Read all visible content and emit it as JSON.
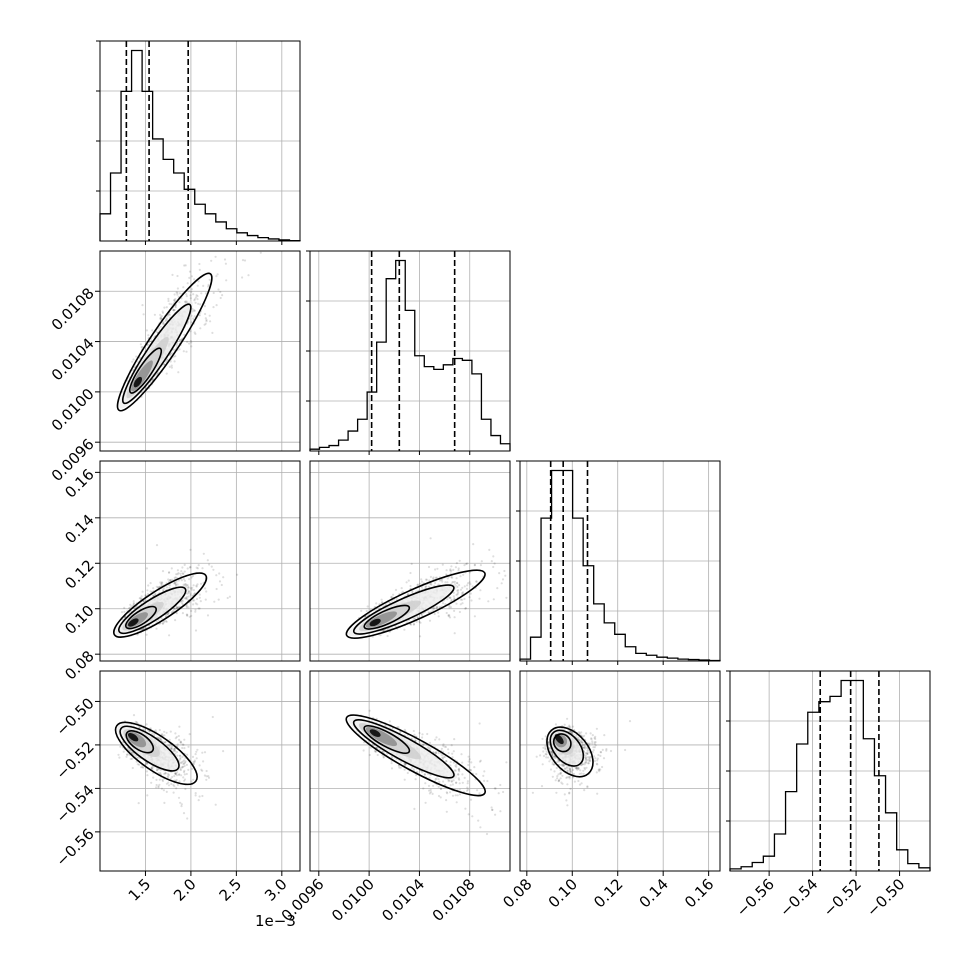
{
  "chart_data": {
    "type": "corner",
    "grid": true,
    "x_offset_label": "1e−3",
    "parameters": [
      {
        "range": [
          1.0,
          3.2
        ],
        "ticks": [
          1.5,
          2.0,
          2.5,
          3.0
        ],
        "tick_labels": [
          "1.5",
          "2.0",
          "2.5",
          "3.0"
        ],
        "quantiles": [
          1.29,
          1.54,
          1.97
        ],
        "hist": [
          20,
          50,
          110,
          140,
          110,
          75,
          60,
          50,
          38,
          27,
          20,
          14,
          9,
          6,
          4,
          2.5,
          1.5,
          0.8,
          0.3
        ]
      },
      {
        "range": [
          0.00953,
          0.01112
        ],
        "ticks": [
          0.0096,
          0.01,
          0.0104,
          0.0108
        ],
        "tick_labels": [
          "0.0096",
          "0.0100",
          "0.0104",
          "0.0108"
        ],
        "quantiles": [
          0.01002,
          0.01024,
          0.01068
        ],
        "hist": [
          2,
          4,
          6,
          12,
          22,
          35,
          65,
          120,
          190,
          210,
          155,
          105,
          93,
          90,
          95,
          102,
          100,
          85,
          35,
          17,
          8
        ]
      },
      {
        "range": [
          0.077,
          0.165
        ],
        "ticks": [
          0.08,
          0.1,
          0.12,
          0.14,
          0.16
        ],
        "tick_labels": [
          "0.08",
          "0.10",
          "0.12",
          "0.14",
          "0.16"
        ],
        "quantiles": [
          0.0905,
          0.096,
          0.1067
        ],
        "hist": [
          2,
          25,
          150,
          200,
          200,
          150,
          100,
          60,
          40,
          28,
          15,
          8,
          6,
          4,
          3,
          2,
          1.5,
          1,
          0.5
        ]
      },
      {
        "range": [
          -0.578,
          -0.486
        ],
        "ticks": [
          -0.56,
          -0.54,
          -0.52,
          -0.5
        ],
        "tick_labels": [
          "−0.56",
          "−0.54",
          "−0.52",
          "−0.50"
        ],
        "quantiles": [
          -0.5365,
          -0.5225,
          -0.5095
        ],
        "hist": [
          2,
          4,
          8,
          14,
          35,
          75,
          120,
          150,
          160,
          165,
          180,
          180,
          125,
          90,
          55,
          20,
          7,
          3
        ]
      }
    ],
    "pairs": [
      {
        "row": 1,
        "col": 0,
        "center": [
          1.4,
          0.01006
        ],
        "end": [
          2.15,
          0.01087
        ],
        "slope_rho": 0.9
      },
      {
        "row": 2,
        "col": 0,
        "center": [
          1.35,
          0.0935
        ],
        "end": [
          2.1,
          0.113
        ],
        "slope_rho": 0.9
      },
      {
        "row": 2,
        "col": 1,
        "center": [
          0.01003,
          0.0935
        ],
        "end": [
          0.01085,
          0.114
        ],
        "slope_rho": 0.88
      },
      {
        "row": 3,
        "col": 0,
        "center": [
          1.35,
          -0.516
        ],
        "end": [
          2.0,
          -0.535
        ],
        "slope_rho": -0.8
      },
      {
        "row": 3,
        "col": 1,
        "center": [
          0.01003,
          -0.514
        ],
        "end": [
          0.01085,
          -0.54
        ],
        "slope_rho": -0.85
      },
      {
        "row": 3,
        "col": 2,
        "center": [
          0.094,
          -0.517
        ],
        "end": [
          0.106,
          -0.532
        ],
        "slope_rho": -0.75
      }
    ]
  }
}
